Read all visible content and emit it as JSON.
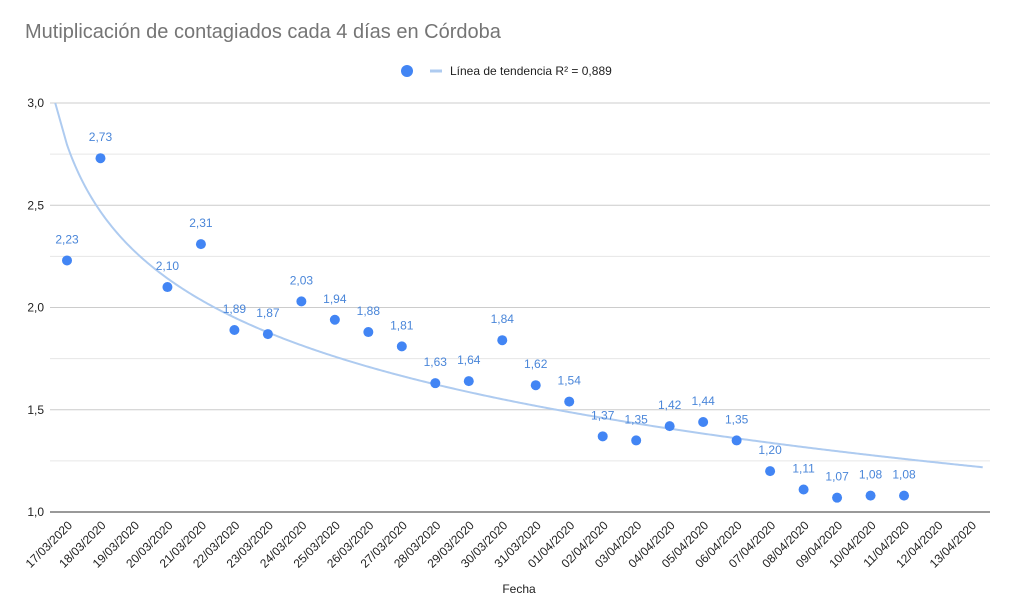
{
  "chart_data": {
    "type": "scatter",
    "title": "Mutiplicación de contagiados cada 4 días en Córdoba",
    "xlabel": "Fecha",
    "ylabel": "",
    "ylim": [
      1.0,
      3.0
    ],
    "yticks": [
      "1,0",
      "1,5",
      "2,0",
      "2,5",
      "3,0"
    ],
    "ytick_values": [
      1.0,
      1.5,
      2.0,
      2.5,
      3.0
    ],
    "grid": true,
    "legend_position": "top-center",
    "categories": [
      "17/03/2020",
      "18/03/2020",
      "19/03/2020",
      "20/03/2020",
      "21/03/2020",
      "22/03/2020",
      "23/03/2020",
      "24/03/2020",
      "25/03/2020",
      "26/03/2020",
      "27/03/2020",
      "28/03/2020",
      "29/03/2020",
      "30/03/2020",
      "31/03/2020",
      "01/04/2020",
      "02/04/2020",
      "03/04/2020",
      "04/04/2020",
      "05/04/2020",
      "06/04/2020",
      "07/04/2020",
      "08/04/2020",
      "09/04/2020",
      "10/04/2020",
      "11/04/2020",
      "12/04/2020",
      "13/04/2020"
    ],
    "series": [
      {
        "name": "",
        "color": "#4285f4",
        "values": [
          2.23,
          2.73,
          null,
          2.1,
          2.31,
          1.89,
          1.87,
          2.03,
          1.94,
          1.88,
          1.81,
          1.63,
          1.64,
          1.84,
          1.62,
          1.54,
          1.37,
          1.35,
          1.42,
          1.44,
          1.35,
          1.2,
          1.11,
          1.07,
          1.08,
          1.08,
          null,
          null
        ],
        "labels": [
          "2,23",
          "2,73",
          "",
          "2,10",
          "2,31",
          "1,89",
          "1,87",
          "2,03",
          "1,94",
          "1,88",
          "1,81",
          "1,63",
          "1,64",
          "1,84",
          "1,62",
          "1,54",
          "1,37",
          "1,35",
          "1,42",
          "1,44",
          "1,35",
          "1,20",
          "1,11",
          "1,07",
          "1,08",
          "1,08",
          "",
          ""
        ]
      }
    ],
    "trendline": {
      "label": "Línea de tendencia R² = 0,889",
      "type": "logarithmic",
      "color": "#aecbf0",
      "r2": 0.889
    }
  }
}
